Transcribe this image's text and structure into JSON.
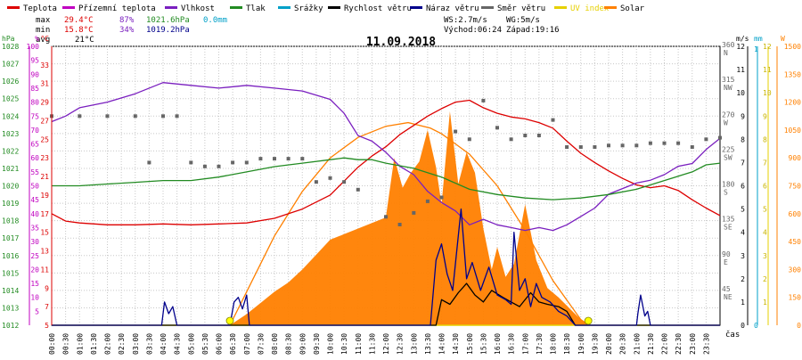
{
  "legend": [
    {
      "label": "Teplota",
      "color": "#dd0000"
    },
    {
      "label": "Přízemní teplota",
      "color": "#c000c0"
    },
    {
      "label": "Vlhkost",
      "color": "#7a1fbf"
    },
    {
      "label": "Tlak",
      "color": "#228b22"
    },
    {
      "label": "Srážky",
      "color": "#00a0c8"
    },
    {
      "label": "Rychlost větru",
      "color": "#000000"
    },
    {
      "label": "Náraz větru",
      "color": "#00008b"
    },
    {
      "label": "Směr větru",
      "color": "#666666"
    },
    {
      "label": "UV index",
      "color": "#e6d000"
    },
    {
      "label": "Solar",
      "color": "#ff8000"
    }
  ],
  "stats": {
    "max_label": "max",
    "max_temp": "29.4°C",
    "max_hum": "87%",
    "max_pres": "1021.6hPa",
    "max_rain": "0.0mm",
    "min_label": "min",
    "min_temp": "15.8°C",
    "min_hum": "34%",
    "min_pres": "1019.2hPa",
    "avg_label": "avg",
    "avg_temp": "21°C"
  },
  "wind_info": {
    "ws": "WS:2.7m/s",
    "wg": "WG:5m/s",
    "sunrise": "Východ:06:24",
    "sunset": "Západ:19:16"
  },
  "chart_data": {
    "type": "line",
    "title": "11.09.2018",
    "xlabel": "čas",
    "x_ticks": [
      "00:00",
      "00:30",
      "01:00",
      "01:30",
      "02:00",
      "02:30",
      "03:00",
      "03:30",
      "04:00",
      "04:30",
      "05:00",
      "05:30",
      "06:00",
      "06:30",
      "07:00",
      "07:30",
      "08:00",
      "08:30",
      "09:00",
      "09:30",
      "10:00",
      "10:30",
      "11:00",
      "11:30",
      "12:00",
      "12:30",
      "13:00",
      "13:30",
      "14:00",
      "14:30",
      "15:00",
      "15:30",
      "16:00",
      "16:30",
      "17:00",
      "17:30",
      "18:00",
      "18:30",
      "19:00",
      "19:30",
      "20:00",
      "20:30",
      "21:00",
      "21:30",
      "22:00",
      "22:30",
      "23:00",
      "23:30"
    ],
    "xlim": [
      0,
      24
    ],
    "axes": {
      "pressure": {
        "unit": "hPa",
        "range": [
          1012,
          1028
        ],
        "ticks": [
          "1012",
          "1013",
          "1014",
          "1015",
          "1016",
          "1017",
          "1018",
          "1019",
          "1020",
          "1021",
          "1022",
          "1023",
          "1024",
          "1025",
          "1026",
          "1027",
          "1028"
        ]
      },
      "humidity": {
        "unit": "%",
        "range": [
          0,
          100
        ],
        "ticks": [
          "5",
          "10",
          "15",
          "20",
          "25",
          "30",
          "35",
          "40",
          "45",
          "50",
          "55",
          "60",
          "65",
          "70",
          "75",
          "80",
          "85",
          "90",
          "95",
          "100"
        ]
      },
      "temperature": {
        "unit": "°C",
        "range": [
          5,
          35
        ],
        "ticks": [
          "5",
          "7",
          "9",
          "11",
          "13",
          "15",
          "17",
          "19",
          "21",
          "23",
          "25",
          "27",
          "29",
          "31",
          "33"
        ]
      },
      "wind_direction": {
        "range": [
          0,
          360
        ],
        "ticks": [
          "45",
          "90",
          "135",
          "180",
          "225",
          "270",
          "315",
          "360"
        ],
        "names": [
          "NE",
          "E",
          "SE",
          "S",
          "SW",
          "W",
          "NW",
          "N"
        ]
      },
      "wind_speed": {
        "unit": "m/s",
        "range": [
          0,
          12
        ],
        "ticks": [
          "0",
          "1",
          "2",
          "3",
          "4",
          "5",
          "6",
          "7",
          "8",
          "9",
          "10",
          "11",
          "12"
        ]
      },
      "rain": {
        "unit": "mm",
        "ticks": [
          "0",
          "1"
        ]
      },
      "uv": {
        "ticks": [
          "1",
          "2",
          "3",
          "4",
          "5",
          "6",
          "7",
          "8",
          "9",
          "10",
          "11",
          "12"
        ]
      },
      "solar": {
        "unit": "W",
        "range": [
          0,
          1500
        ],
        "ticks": [
          "0",
          "150",
          "300",
          "450",
          "600",
          "750",
          "900",
          "1050",
          "1200",
          "1350",
          "1500"
        ]
      }
    },
    "series": [
      {
        "name": "Teplota",
        "color": "#dd0000",
        "axis": "temperature",
        "x": [
          0,
          0.5,
          1,
          2,
          3,
          4,
          5,
          6,
          7,
          8,
          9,
          10,
          10.5,
          11,
          11.5,
          12,
          12.5,
          13,
          13.5,
          14,
          14.5,
          15,
          15.5,
          16,
          16.5,
          17,
          17.5,
          18,
          18.5,
          19,
          19.5,
          20,
          20.5,
          21,
          21.5,
          22,
          22.5,
          23,
          23.5,
          24
        ],
        "y": [
          17.0,
          16.2,
          16.0,
          15.8,
          15.8,
          15.9,
          15.8,
          15.9,
          16.0,
          16.5,
          17.5,
          19.0,
          20.5,
          22.0,
          23.2,
          24.2,
          25.5,
          26.5,
          27.5,
          28.3,
          29.0,
          29.2,
          28.4,
          27.8,
          27.4,
          27.2,
          26.8,
          26.2,
          24.8,
          23.5,
          22.5,
          21.6,
          20.8,
          20.1,
          19.8,
          20.0,
          19.5,
          18.5,
          17.6,
          16.8
        ]
      },
      {
        "name": "Vlhkost",
        "color": "#7a1fbf",
        "axis": "humidity",
        "x": [
          0,
          0.5,
          1,
          2,
          3,
          4,
          5,
          6,
          7,
          8,
          9,
          10,
          10.5,
          11,
          11.5,
          12,
          12.5,
          13,
          13.5,
          14,
          14.5,
          15,
          15.5,
          16,
          16.5,
          17,
          17.5,
          18,
          18.5,
          19,
          19.5,
          20,
          20.5,
          21,
          21.5,
          22,
          22.5,
          23,
          23.5,
          24
        ],
        "y": [
          73,
          75,
          78,
          80,
          83,
          87,
          86,
          85,
          86,
          85,
          84,
          81,
          76,
          68,
          66,
          62,
          57,
          54,
          48,
          44,
          41,
          36,
          38,
          36,
          35,
          34,
          35,
          34,
          36,
          39,
          42,
          47,
          49,
          51,
          52,
          54,
          57,
          58,
          63,
          67
        ]
      },
      {
        "name": "Tlak",
        "color": "#228b22",
        "axis": "pressure",
        "x": [
          0,
          1,
          2,
          3,
          4,
          5,
          6,
          7,
          8,
          9,
          10,
          10.5,
          11,
          11.5,
          12,
          13,
          14,
          15,
          16,
          17,
          18,
          19,
          20,
          21,
          22,
          23,
          23.5,
          24
        ],
        "y": [
          1020.0,
          1020.0,
          1020.1,
          1020.2,
          1020.3,
          1020.3,
          1020.5,
          1020.8,
          1021.1,
          1021.3,
          1021.5,
          1021.6,
          1021.5,
          1021.5,
          1021.3,
          1021.0,
          1020.5,
          1019.8,
          1019.5,
          1019.3,
          1019.2,
          1019.3,
          1019.5,
          1019.8,
          1020.3,
          1020.8,
          1021.2,
          1021.3
        ]
      },
      {
        "name": "Rychlost větru",
        "color": "#000000",
        "axis": "wind_speed",
        "x": [
          0,
          13.8,
          14.0,
          14.3,
          14.6,
          14.9,
          15.2,
          15.5,
          15.8,
          16.2,
          16.5,
          16.8,
          17.2,
          17.5,
          17.8,
          18.2,
          18.5,
          18.8,
          24
        ],
        "y": [
          0,
          0,
          1.1,
          0.9,
          1.4,
          1.8,
          1.3,
          1.0,
          1.5,
          1.2,
          1.0,
          0.8,
          1.4,
          1.0,
          0.9,
          0.8,
          0.6,
          0,
          0
        ]
      },
      {
        "name": "Náraz větru",
        "color": "#00008b",
        "axis": "wind_speed",
        "x": [
          0,
          3.95,
          4.05,
          4.2,
          4.35,
          4.5,
          6.4,
          6.55,
          6.7,
          6.85,
          7.0,
          7.1,
          7.3,
          13.6,
          13.8,
          14.0,
          14.2,
          14.4,
          14.7,
          14.9,
          15.1,
          15.4,
          15.7,
          16.0,
          16.3,
          16.5,
          16.6,
          16.8,
          17.0,
          17.2,
          17.4,
          17.6,
          17.9,
          18.2,
          18.5,
          18.8,
          21.0,
          21.05,
          21.15,
          21.3,
          21.4,
          21.5,
          24
        ],
        "y": [
          0,
          0,
          1.0,
          0.5,
          0.8,
          0,
          0,
          1.0,
          1.2,
          0.7,
          1.3,
          0,
          0,
          0,
          2.8,
          3.5,
          2.2,
          1.5,
          5.0,
          2.0,
          2.7,
          1.5,
          2.5,
          1.3,
          1.1,
          0.9,
          4.0,
          1.5,
          2.0,
          0.8,
          1.8,
          1.2,
          1.0,
          0.6,
          0.4,
          0,
          0,
          0.5,
          1.3,
          0.4,
          0.6,
          0,
          0
        ]
      },
      {
        "name": "Směr větru",
        "color": "#666666",
        "axis": "wind_direction",
        "x": [
          0,
          1,
          2,
          3,
          3.5,
          4,
          4.5,
          5,
          5.5,
          6,
          6.5,
          7,
          7.5,
          8,
          8.5,
          9,
          9.5,
          10,
          10.5,
          11,
          12,
          12.5,
          13,
          13.5,
          14,
          14.5,
          15,
          15.5,
          16,
          16.5,
          17,
          17.5,
          18,
          18.5,
          19,
          19.5,
          20,
          20.5,
          21,
          21.5,
          22,
          22.5,
          23,
          23.5,
          24
        ],
        "y": [
          270,
          270,
          270,
          270,
          210,
          270,
          270,
          210,
          205,
          205,
          210,
          210,
          215,
          215,
          215,
          215,
          185,
          190,
          185,
          175,
          140,
          130,
          145,
          160,
          165,
          250,
          240,
          290,
          255,
          240,
          245,
          245,
          265,
          230,
          230,
          230,
          232,
          232,
          232,
          235,
          235,
          235,
          230,
          240,
          242
        ]
      }
    ],
    "solar": {
      "name": "Solar",
      "color": "#ff8000",
      "axis": "solar",
      "x": [
        6.4,
        7.0,
        7.5,
        8.0,
        8.5,
        9.0,
        9.5,
        10.0,
        10.5,
        11.0,
        11.5,
        12.0,
        12.3,
        12.6,
        12.9,
        13.2,
        13.5,
        13.8,
        14.0,
        14.3,
        14.6,
        14.9,
        15.2,
        15.5,
        15.8,
        16.0,
        16.3,
        16.6,
        17.0,
        17.4,
        17.8,
        18.2,
        18.6,
        19.0,
        19.3
      ],
      "y": [
        0,
        60,
        120,
        180,
        230,
        300,
        380,
        460,
        490,
        520,
        550,
        580,
        900,
        740,
        820,
        880,
        1050,
        850,
        650,
        1150,
        760,
        930,
        820,
        520,
        300,
        420,
        260,
        330,
        650,
        350,
        200,
        150,
        90,
        30,
        0
      ]
    },
    "clear_sky": {
      "name": "clear sky solar",
      "color": "#ff8000",
      "axis": "solar",
      "x": [
        6.4,
        7,
        8,
        9,
        10,
        11,
        12,
        12.8,
        13.6,
        14,
        15,
        16,
        17,
        18,
        19,
        19.3
      ],
      "y": [
        0,
        180,
        480,
        720,
        900,
        1010,
        1070,
        1090,
        1060,
        1030,
        920,
        750,
        510,
        240,
        30,
        0
      ]
    },
    "uv_index": {
      "name": "UV index",
      "color": "#e6d000",
      "axis": "uv",
      "x": [
        0,
        24
      ],
      "y": [
        0,
        0
      ]
    },
    "markers": [
      {
        "label": "sunrise",
        "x": 6.4,
        "color": "#ffff00"
      },
      {
        "label": "sunset",
        "x": 19.27,
        "color": "#ffff00"
      }
    ]
  }
}
